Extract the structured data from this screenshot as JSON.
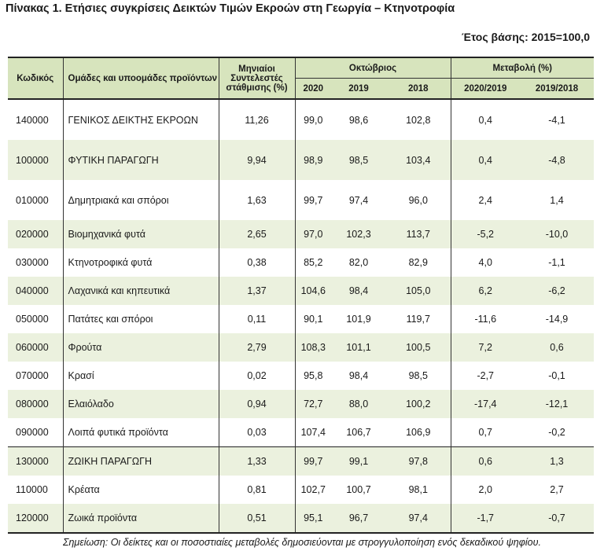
{
  "title": "Πίνακας 1. Ετήσιες συγκρίσεις Δεικτών Τιμών Εκροών στη Γεωργία – Κτηνοτροφία",
  "base_year": "Έτος βάσης: 2015=100,0",
  "header": {
    "code": "Κωδικός",
    "name": "Ομάδες και υποομάδες προϊόντων",
    "weights": "Μηνιαίοι Συντελεστές στάθμισης (%)",
    "october": "Οκτώβριος",
    "y2020": "2020",
    "y2019": "2019",
    "y2018": "2018",
    "change": "Μεταβολή (%)",
    "ch1": "2020/2019",
    "ch2": "2019/2018"
  },
  "rows": [
    {
      "code": "140000",
      "name": "ΓΕΝΙΚΟΣ ΔΕΙΚΤΗΣ ΕΚΡΟΩΝ",
      "w": "11,26",
      "a": "99,0",
      "b": "98,6",
      "c": "102,8",
      "d": "0,4",
      "e": "-4,1"
    },
    {
      "code": "100000",
      "name": "ΦΥΤΙΚΗ ΠΑΡΑΓΩΓΗ",
      "w": "9,94",
      "a": "98,9",
      "b": "98,5",
      "c": "103,4",
      "d": "0,4",
      "e": "-4,8"
    },
    {
      "code": "010000",
      "name": "Δημητριακά και σπόροι",
      "w": "1,63",
      "a": "99,7",
      "b": "97,4",
      "c": "96,0",
      "d": "2,4",
      "e": "1,4"
    },
    {
      "code": "020000",
      "name": "Βιομηχανικά φυτά",
      "w": "2,65",
      "a": "97,0",
      "b": "102,3",
      "c": "113,7",
      "d": "-5,2",
      "e": "-10,0"
    },
    {
      "code": "030000",
      "name": "Κτηνοτροφικά φυτά",
      "w": "0,38",
      "a": "85,2",
      "b": "82,0",
      "c": "82,9",
      "d": "4,0",
      "e": "-1,1"
    },
    {
      "code": "040000",
      "name": "Λαχανικά και κηπευτικά",
      "w": "1,37",
      "a": "104,6",
      "b": "98,4",
      "c": "105,0",
      "d": "6,2",
      "e": "-6,2"
    },
    {
      "code": "050000",
      "name": "Πατάτες και σπόροι",
      "w": "0,11",
      "a": "90,1",
      "b": "101,9",
      "c": "119,7",
      "d": "-11,6",
      "e": "-14,9"
    },
    {
      "code": "060000",
      "name": "Φρούτα",
      "w": "2,79",
      "a": "108,3",
      "b": "101,1",
      "c": "100,5",
      "d": "7,2",
      "e": "0,6"
    },
    {
      "code": "070000",
      "name": "Κρασί",
      "w": "0,02",
      "a": "95,8",
      "b": "98,4",
      "c": "98,5",
      "d": "-2,7",
      "e": "-0,1"
    },
    {
      "code": "080000",
      "name": "Ελαιόλαδο",
      "w": "0,94",
      "a": "72,7",
      "b": "88,0",
      "c": "100,2",
      "d": "-17,4",
      "e": "-12,1"
    },
    {
      "code": "090000",
      "name": "Λοιπά φυτικά προϊόντα",
      "w": "0,03",
      "a": "107,4",
      "b": "106,7",
      "c": "106,9",
      "d": "0,7",
      "e": "-0,2"
    },
    {
      "code": "130000",
      "name": "ΖΩΙΚΗ ΠΑΡΑΓΩΓΗ",
      "w": "1,33",
      "a": "99,7",
      "b": "99,1",
      "c": "97,8",
      "d": "0,6",
      "e": "1,3"
    },
    {
      "code": "110000",
      "name": "Κρέατα",
      "w": "0,81",
      "a": "102,7",
      "b": "100,7",
      "c": "98,1",
      "d": "2,0",
      "e": "2,7"
    },
    {
      "code": "120000",
      "name": "Ζωικά προϊόντα",
      "w": "0,51",
      "a": "95,1",
      "b": "96,7",
      "c": "97,4",
      "d": "-1,7",
      "e": "-0,7"
    }
  ],
  "note": "Σημείωση: Οι δείκτες και οι ποσοστιαίες μεταβολές δημοσιεύονται με στρογγυλοποίηση ενός δεκαδικού ψηφίου."
}
